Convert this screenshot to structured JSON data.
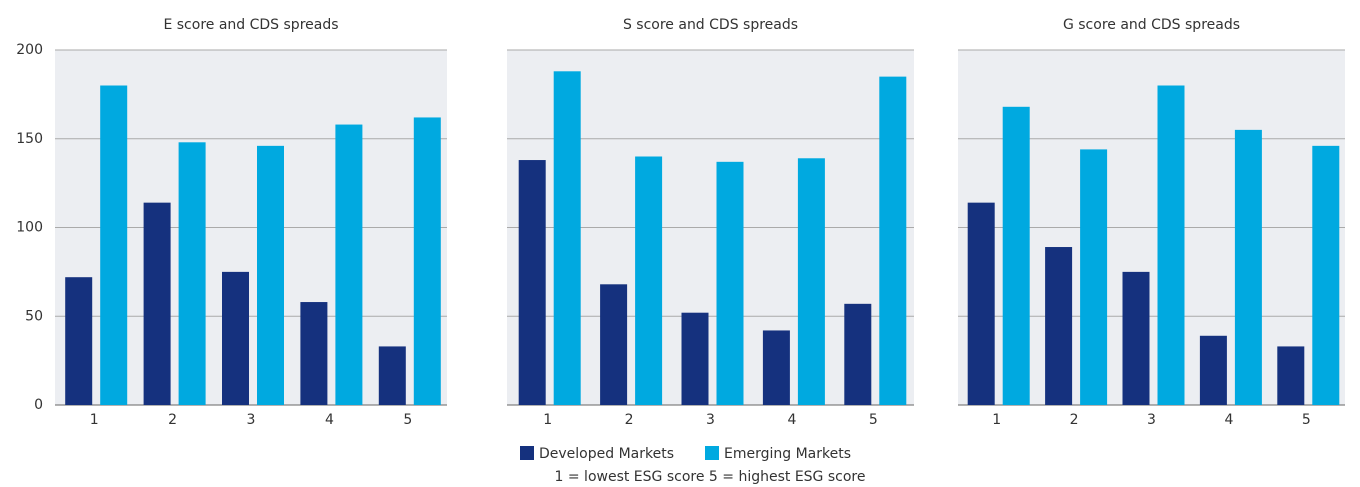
{
  "chart_data": [
    {
      "type": "bar",
      "title": "E score and CDS spreads",
      "categories": [
        "1",
        "2",
        "3",
        "4",
        "5"
      ],
      "series": [
        {
          "values": [
            72,
            114,
            75,
            58,
            33
          ]
        },
        {
          "values": [
            180,
            148,
            146,
            158,
            162
          ]
        }
      ],
      "ylim": [
        0,
        200
      ],
      "yticks": [
        0,
        50,
        100,
        150,
        200
      ],
      "ytick_labels": true
    },
    {
      "type": "bar",
      "title": "S score and CDS spreads",
      "categories": [
        "1",
        "2",
        "3",
        "4",
        "5"
      ],
      "series": [
        {
          "values": [
            138,
            68,
            52,
            42,
            57
          ]
        },
        {
          "values": [
            188,
            140,
            137,
            139,
            185
          ]
        }
      ],
      "ylim": [
        0,
        200
      ],
      "yticks": [
        0,
        50,
        100,
        150,
        200
      ],
      "ytick_labels": false
    },
    {
      "type": "bar",
      "title": "G score and CDS spreads",
      "categories": [
        "1",
        "2",
        "3",
        "4",
        "5"
      ],
      "series": [
        {
          "values": [
            114,
            89,
            75,
            39,
            33
          ]
        },
        {
          "values": [
            168,
            144,
            180,
            155,
            146
          ]
        }
      ],
      "ylim": [
        0,
        200
      ],
      "yticks": [
        0,
        50,
        100,
        150,
        200
      ],
      "ytick_labels": false
    }
  ],
  "legend": [
    {
      "name": "Developed Markets",
      "color": "#15317e"
    },
    {
      "name": "Emerging Markets",
      "color": "#00a9e0"
    }
  ],
  "note": "1 = lowest ESG score 5 = highest ESG score"
}
